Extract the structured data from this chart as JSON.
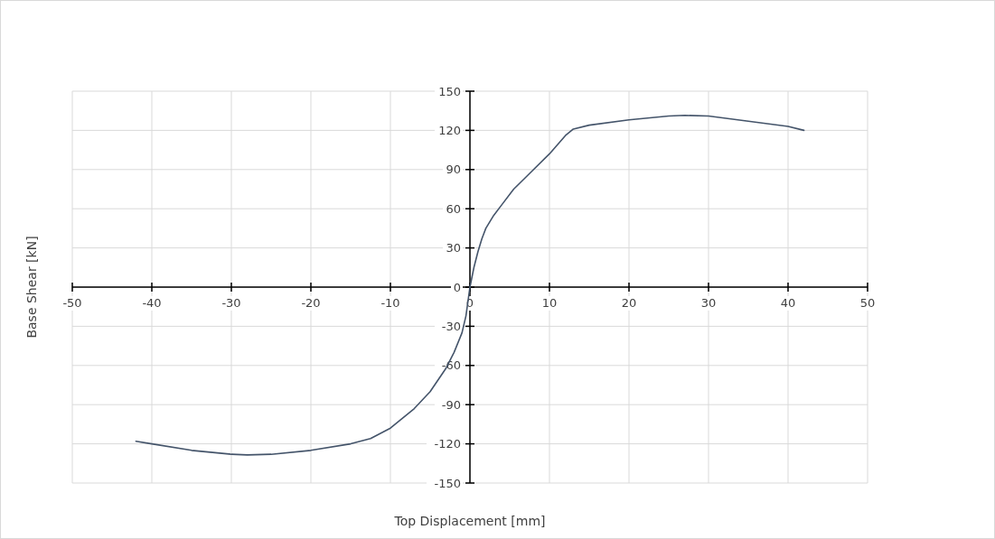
{
  "chart_data": {
    "type": "line",
    "xlabel": "Top Displacement [mm]",
    "ylabel": "Base Shear [kN]",
    "xlim": [
      -50,
      50
    ],
    "xticks": [
      -50,
      -40,
      -30,
      -20,
      -10,
      0,
      10,
      20,
      30,
      40,
      50
    ],
    "ylim": [
      -150,
      150
    ],
    "yticks": [
      -150,
      -120,
      -90,
      -60,
      -30,
      0,
      30,
      60,
      90,
      120,
      150
    ],
    "grid": true,
    "marker": "none",
    "line_style": "solid",
    "series": [
      {
        "color": "#44546a",
        "x": [
          -42,
          -40,
          -35,
          -30,
          -28,
          -25,
          -20,
          -15,
          -12.5,
          -10,
          -7,
          -5,
          -3,
          -2,
          -1,
          -0.5,
          0,
          0.5,
          1,
          1.5,
          2,
          3,
          4,
          5.5,
          7,
          10,
          12,
          13,
          15,
          20,
          25,
          27,
          30,
          35,
          40,
          42
        ],
        "values": [
          -118,
          -120,
          -125,
          -128,
          -128.5,
          -128,
          -125,
          -120,
          -116,
          -108,
          -93,
          -80,
          -62,
          -50,
          -35,
          -22,
          0,
          15,
          27,
          37,
          45,
          55,
          63,
          75,
          84,
          102,
          116,
          121,
          124,
          128,
          131,
          131.5,
          131,
          127,
          123,
          120
        ]
      }
    ]
  }
}
